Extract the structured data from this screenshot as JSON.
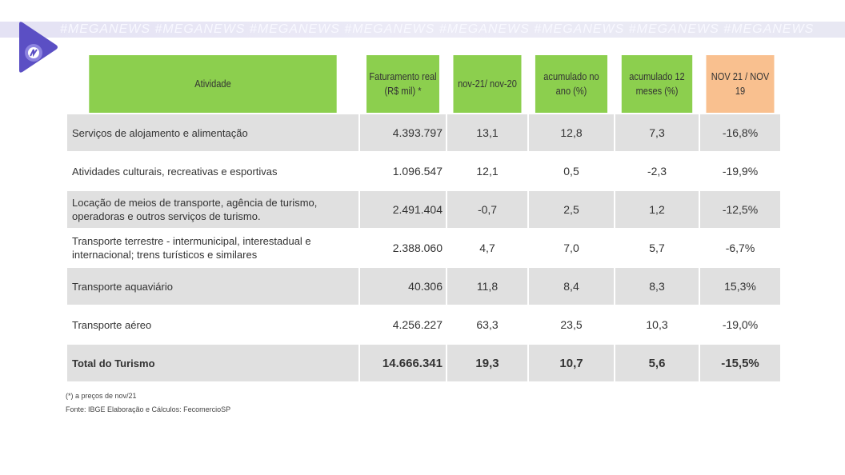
{
  "watermark": "#MEGANEWS #MEGANEWS #MEGANEWS #MEGANEWS #MEGANEWS #MEGANEWS #MEGANEWS #MEGANEWS",
  "colors": {
    "header_green": "#8ccf4e",
    "header_orange": "#f9c08f",
    "row_gray": "#e0e0e0",
    "logo": "#5b4fc4"
  },
  "table": {
    "headers": [
      "Atividade",
      "Faturamento real (R$ mil) *",
      "nov-21/ nov-20",
      "acumulado no ano (%)",
      "acumulado 12 meses (%)",
      "NOV 21 / NOV 19"
    ],
    "rows": [
      [
        "Serviços de alojamento e alimentação",
        "4.393.797",
        "13,1",
        "12,8",
        "7,3",
        "-16,8%"
      ],
      [
        "Atividades culturais, recreativas e esportivas",
        "1.096.547",
        "12,1",
        "0,5",
        "-2,3",
        "-19,9%"
      ],
      [
        "Locação de meios de transporte, agência de turismo, operadoras e outros serviços de turismo.",
        "2.491.404",
        "-0,7",
        "2,5",
        "1,2",
        "-12,5%"
      ],
      [
        "Transporte terrestre - intermunicipal, interestadual e internacional; trens turísticos e similares",
        "2.388.060",
        "4,7",
        "7,0",
        "5,7",
        "-6,7%"
      ],
      [
        "Transporte aquaviário",
        "40.306",
        "11,8",
        "8,4",
        "8,3",
        "15,3%"
      ],
      [
        "Transporte aéreo",
        "4.256.227",
        "63,3",
        "23,5",
        "10,3",
        "-19,0%"
      ]
    ],
    "total": [
      "Total do Turismo",
      "14.666.341",
      "19,3",
      "10,7",
      "5,6",
      "-15,5%"
    ]
  },
  "notes": {
    "footnote": "(*) a preços de nov/21",
    "source": "Fonte: IBGE Elaboração e Cálculos: FecomercioSP"
  }
}
